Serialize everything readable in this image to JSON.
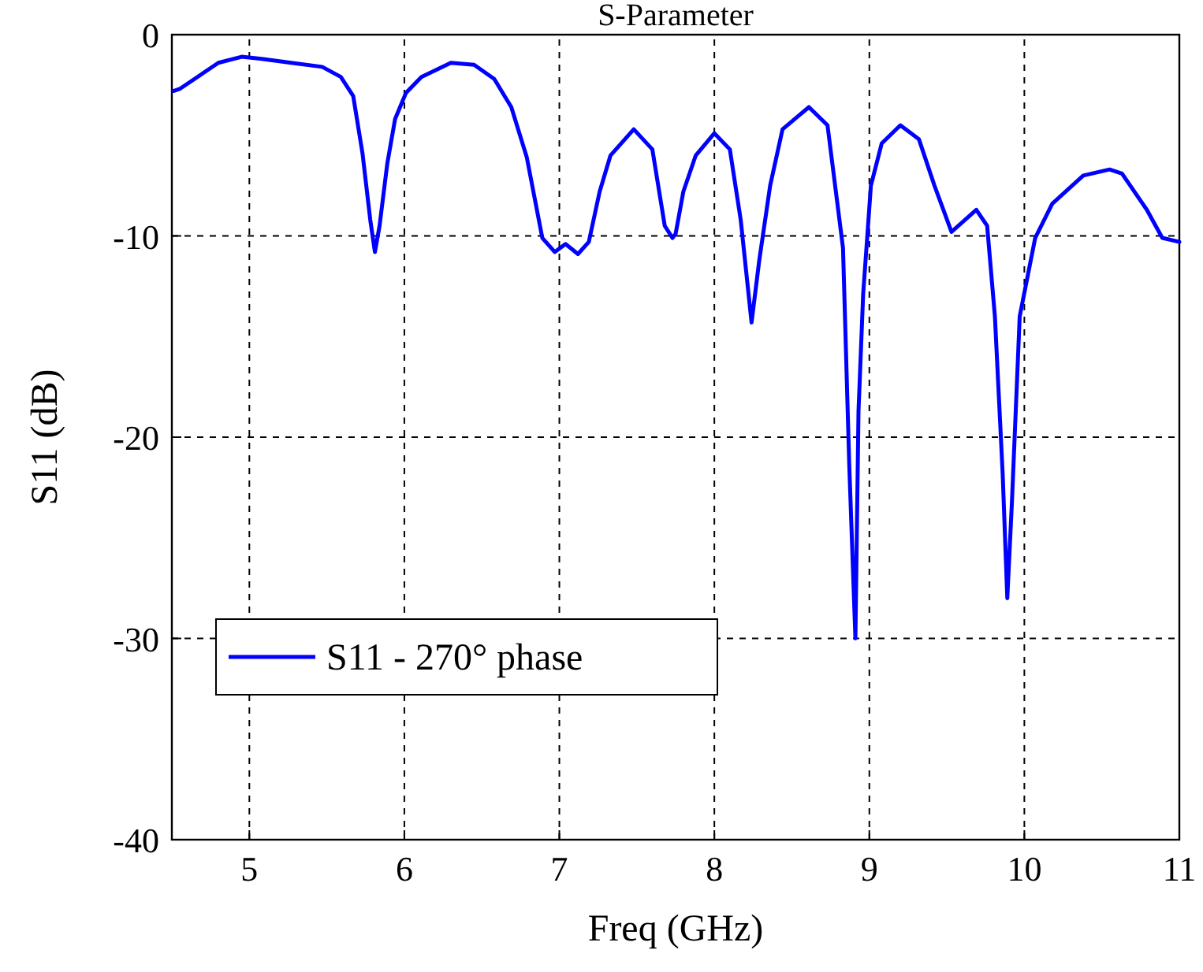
{
  "chart_data": {
    "type": "line",
    "title": "S-Parameter",
    "xlabel": "Freq (GHz)",
    "ylabel": "S11 (dB)",
    "xlim": [
      4.5,
      11
    ],
    "ylim": [
      -40,
      0
    ],
    "xticks": [
      5,
      6,
      7,
      8,
      9,
      10,
      11
    ],
    "yticks": [
      -40,
      -30,
      -20,
      -10,
      0
    ],
    "grid": true,
    "legend": "bottom left",
    "series": [
      {
        "name": "S11 - 270° phase",
        "color": "#0000ff",
        "x": [
          4.51,
          4.55,
          4.8,
          4.95,
          5.08,
          5.27,
          5.47,
          5.59,
          5.67,
          5.73,
          5.78,
          5.81,
          5.84,
          5.89,
          5.94,
          6.01,
          6.11,
          6.3,
          6.45,
          6.58,
          6.69,
          6.79,
          6.89,
          6.97,
          7.04,
          7.12,
          7.19,
          7.26,
          7.33,
          7.48,
          7.6,
          7.68,
          7.73,
          7.75,
          7.8,
          7.88,
          8.0,
          8.1,
          8.17,
          8.24,
          8.29,
          8.36,
          8.44,
          8.61,
          8.73,
          8.83,
          8.87,
          8.91,
          8.93,
          8.96,
          9.01,
          9.08,
          9.2,
          9.32,
          9.42,
          9.53,
          9.69,
          9.76,
          9.81,
          9.86,
          9.89,
          9.92,
          9.97,
          10.07,
          10.18,
          10.38,
          10.55,
          10.63,
          10.79,
          10.89,
          11.0
        ],
        "values": [
          -2.8,
          -2.7,
          -1.4,
          -1.1,
          -1.2,
          -1.4,
          -1.6,
          -2.1,
          -3.05,
          -5.9,
          -9.2,
          -10.8,
          -9.5,
          -6.4,
          -4.2,
          -2.9,
          -2.1,
          -1.4,
          -1.5,
          -2.2,
          -3.6,
          -6.1,
          -10.1,
          -10.8,
          -10.4,
          -10.9,
          -10.3,
          -7.8,
          -6.0,
          -4.7,
          -5.7,
          -9.5,
          -10.1,
          -9.9,
          -7.8,
          -6.0,
          -4.9,
          -5.7,
          -9.2,
          -14.3,
          -11.2,
          -7.5,
          -4.7,
          -3.6,
          -4.5,
          -10.6,
          -21.3,
          -30.0,
          -18.7,
          -12.9,
          -7.5,
          -5.4,
          -4.5,
          -5.2,
          -7.5,
          -9.8,
          -8.7,
          -9.5,
          -14.0,
          -21.8,
          -28.0,
          -23.2,
          -14.0,
          -10.1,
          -8.4,
          -7.0,
          -6.7,
          -6.9,
          -8.7,
          -10.1,
          -10.3
        ]
      }
    ]
  }
}
